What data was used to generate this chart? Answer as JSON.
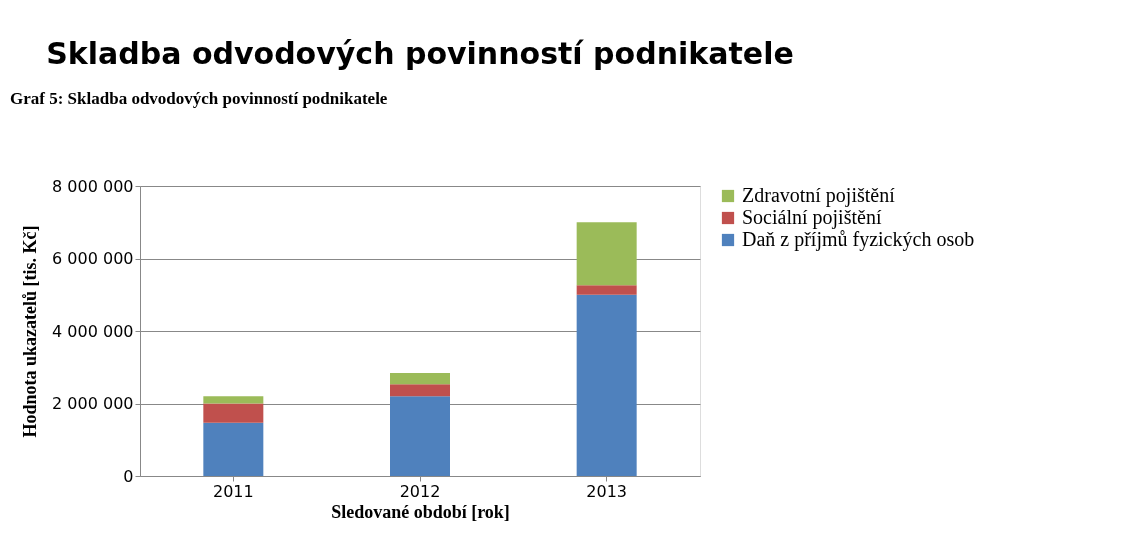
{
  "chart_data": {
    "type": "bar",
    "stacked": true,
    "title": "Skladba odvodových povinností podnikatele",
    "xlabel": "Sledované období [rok]",
    "ylabel": "Hodnota ukazatelů [tis. Kč]",
    "annotations": [
      "Graf 5: Skladba odvodových povinností podnikatele"
    ],
    "categories": [
      "2011",
      "2012",
      "2013"
    ],
    "series": [
      {
        "name": "Daň z příjmů fyzických osob",
        "color": "#4f81bd",
        "values": [
          1470000,
          2200000,
          5000000
        ]
      },
      {
        "name": "Sociální pojištění",
        "color": "#c0504d",
        "values": [
          530000,
          330000,
          260000
        ]
      },
      {
        "name": "Zdravotní pojištění",
        "color": "#9bbb59",
        "values": [
          200000,
          310000,
          1740000
        ]
      }
    ],
    "ylim": [
      0,
      8000000
    ],
    "yticks": [
      {
        "value": 0,
        "label": "0"
      },
      {
        "value": 2000000,
        "label": "2 000 000"
      },
      {
        "value": 4000000,
        "label": "4 000 000"
      },
      {
        "value": 6000000,
        "label": "6 000 000"
      },
      {
        "value": 8000000,
        "label": "8 000 000"
      }
    ],
    "grid": "y",
    "legend": "right"
  }
}
